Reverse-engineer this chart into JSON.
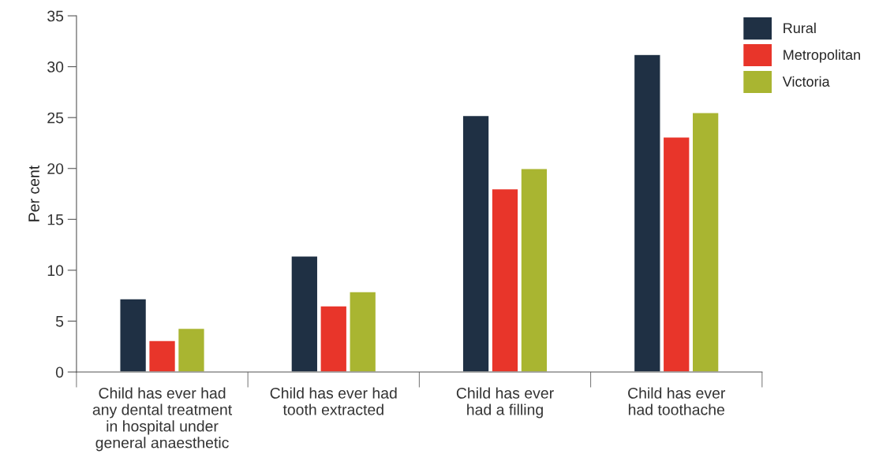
{
  "chart_data": {
    "type": "bar",
    "ylabel": "Per cent",
    "categories": [
      "Child has ever had\nany dental treatment\nin hospital under\ngeneral anaesthetic",
      "Child has ever had\ntooth extracted",
      "Child has ever\nhad a filling",
      "Child has ever\nhad toothache"
    ],
    "series": [
      {
        "name": "Rural",
        "color": "#1f3044",
        "values": [
          7.2,
          11.4,
          25.2,
          31.2
        ]
      },
      {
        "name": "Metropolitan",
        "color": "#e8352a",
        "values": [
          3.1,
          6.5,
          18.0,
          23.1
        ]
      },
      {
        "name": "Victoria",
        "color": "#a9b531",
        "values": [
          4.3,
          7.9,
          20.0,
          25.5
        ]
      }
    ],
    "ylim": [
      0,
      35
    ],
    "yticks": [
      0,
      5,
      10,
      15,
      20,
      25,
      30,
      35
    ],
    "legend": "top right",
    "grid": false
  }
}
